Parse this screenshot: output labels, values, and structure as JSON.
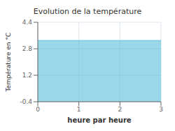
{
  "chart_data": {
    "type": "area",
    "title": "Evolution de la température",
    "xlabel": "heure par heure",
    "ylabel": "Température en °C",
    "x": [
      0,
      3
    ],
    "values": [
      3.3,
      3.3
    ],
    "color": "#56bdd8",
    "xlim": [
      0,
      3
    ],
    "ylim": [
      -0.4,
      4.4
    ],
    "xticks": [
      0,
      1,
      2,
      3
    ],
    "yticks": [
      -0.4,
      1.2,
      2.8,
      4.4
    ],
    "grid": true
  }
}
